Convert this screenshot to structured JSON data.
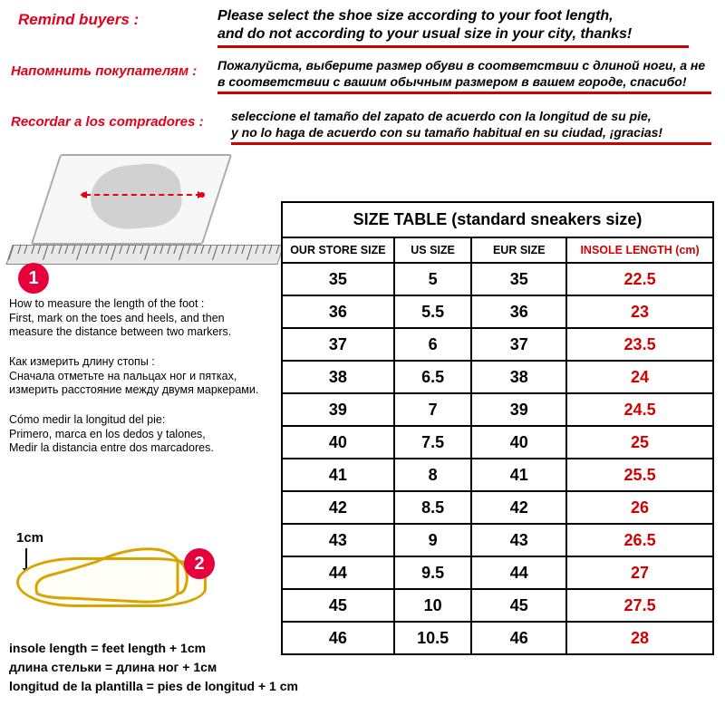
{
  "reminders": {
    "en": {
      "label": "Remind buyers :",
      "line1": "Please select the shoe size according to your foot length,",
      "line2": "and do not according to your usual size in your city, thanks!"
    },
    "ru": {
      "label": "Напомнить покупателям :",
      "line1": "Пожалуйста, выберите размер обуви в соответствии с длиной ноги, а не",
      "line2": "в соответствии с вашим обычным размером в вашем городе, спасибо!"
    },
    "es": {
      "label": "Recordar a los compradores :",
      "line1": "seleccione el tamaño del zapato de acuerdo con la longitud de su pie,",
      "line2": "y no lo haga de acuerdo con su tamaño habitual en su ciudad, ¡gracias!"
    }
  },
  "badge1": "1",
  "badge2": "2",
  "instructions": {
    "en_title": "How to measure the length of the foot :",
    "en_l1": "First, mark on the toes and heels, and then",
    "en_l2": "measure the distance between two markers.",
    "ru_title": "Как измерить длину стопы :",
    "ru_l1": "Сначала отметьте на пальцах ног и пятках,",
    "ru_l2": "измерить расстояние между двумя маркерами.",
    "es_title": "Cómo medir la longitud del pie:",
    "es_l1": "Primero, marca en los dedos y talones,",
    "es_l2": "Medir la distancia entre dos marcadores."
  },
  "cm_label": "1cm",
  "formula": {
    "en": "insole length = feet length + 1cm",
    "ru": "длина стельки = длина ног + 1см",
    "es": "longitud de la plantilla = pies de longitud + 1 cm"
  },
  "table": {
    "title": "SIZE TABLE (standard sneakers size)",
    "columns": [
      "OUR STORE SIZE",
      "US SIZE",
      "EUR  SIZE",
      "INSOLE  LENGTH (cm)"
    ],
    "col_widths_pct": [
      26,
      18,
      22,
      34
    ],
    "rows": [
      [
        "35",
        "5",
        "35",
        "22.5"
      ],
      [
        "36",
        "5.5",
        "36",
        "23"
      ],
      [
        "37",
        "6",
        "37",
        "23.5"
      ],
      [
        "38",
        "6.5",
        "38",
        "24"
      ],
      [
        "39",
        "7",
        "39",
        "24.5"
      ],
      [
        "40",
        "7.5",
        "40",
        "25"
      ],
      [
        "41",
        "8",
        "41",
        "25.5"
      ],
      [
        "42",
        "8.5",
        "42",
        "26"
      ],
      [
        "43",
        "9",
        "43",
        "26.5"
      ],
      [
        "44",
        "9.5",
        "44",
        "27"
      ],
      [
        "45",
        "10",
        "45",
        "27.5"
      ],
      [
        "46",
        "10.5",
        "46",
        "28"
      ]
    ],
    "insole_color": "#d40000",
    "border_color": "#000000",
    "text_color": "#000000"
  },
  "colors": {
    "accent_red": "#e2001a",
    "underline_red": "#cc0000",
    "badge_pink": "#e6003c",
    "sole_yellow": "#d9a400"
  }
}
